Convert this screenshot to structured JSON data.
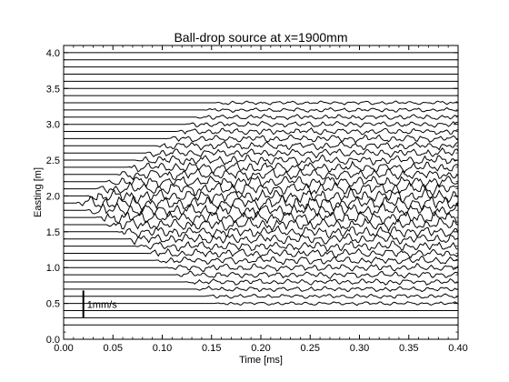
{
  "chart_data": {
    "type": "line",
    "title": "Ball-drop source at x=1900mm",
    "xlabel": "Time [ms]",
    "ylabel": "Easting [m]",
    "xlim": [
      0.0,
      0.4
    ],
    "ylim": [
      0.0,
      4.1
    ],
    "xticks": [
      "0.00",
      "0.05",
      "0.10",
      "0.15",
      "0.20",
      "0.25",
      "0.30",
      "0.35",
      "0.40"
    ],
    "yticks": [
      "0.0",
      "0.5",
      "1.0",
      "1.5",
      "2.0",
      "2.5",
      "3.0",
      "3.5",
      "4.0"
    ],
    "grid": false,
    "trace_offsets": [
      0.2,
      0.3,
      0.4,
      0.5,
      0.6,
      0.7,
      0.8,
      0.9,
      1.0,
      1.1,
      1.2,
      1.3,
      1.4,
      1.5,
      1.6,
      1.7,
      1.8,
      1.9,
      2.0,
      2.1,
      2.2,
      2.3,
      2.4,
      2.5,
      2.6,
      2.7,
      2.8,
      2.9,
      3.0,
      3.1,
      3.2,
      3.3,
      3.4,
      3.5,
      3.6,
      3.7,
      3.8,
      3.9,
      4.0
    ],
    "source_position": 1.9,
    "first_arrival": {
      "t0": 0.013,
      "slowness_ms_per_m": 0.1
    },
    "scale_bar": {
      "label": "1mm/s",
      "x": 0.02,
      "y_bottom": 0.3,
      "y_top": 0.68
    }
  }
}
